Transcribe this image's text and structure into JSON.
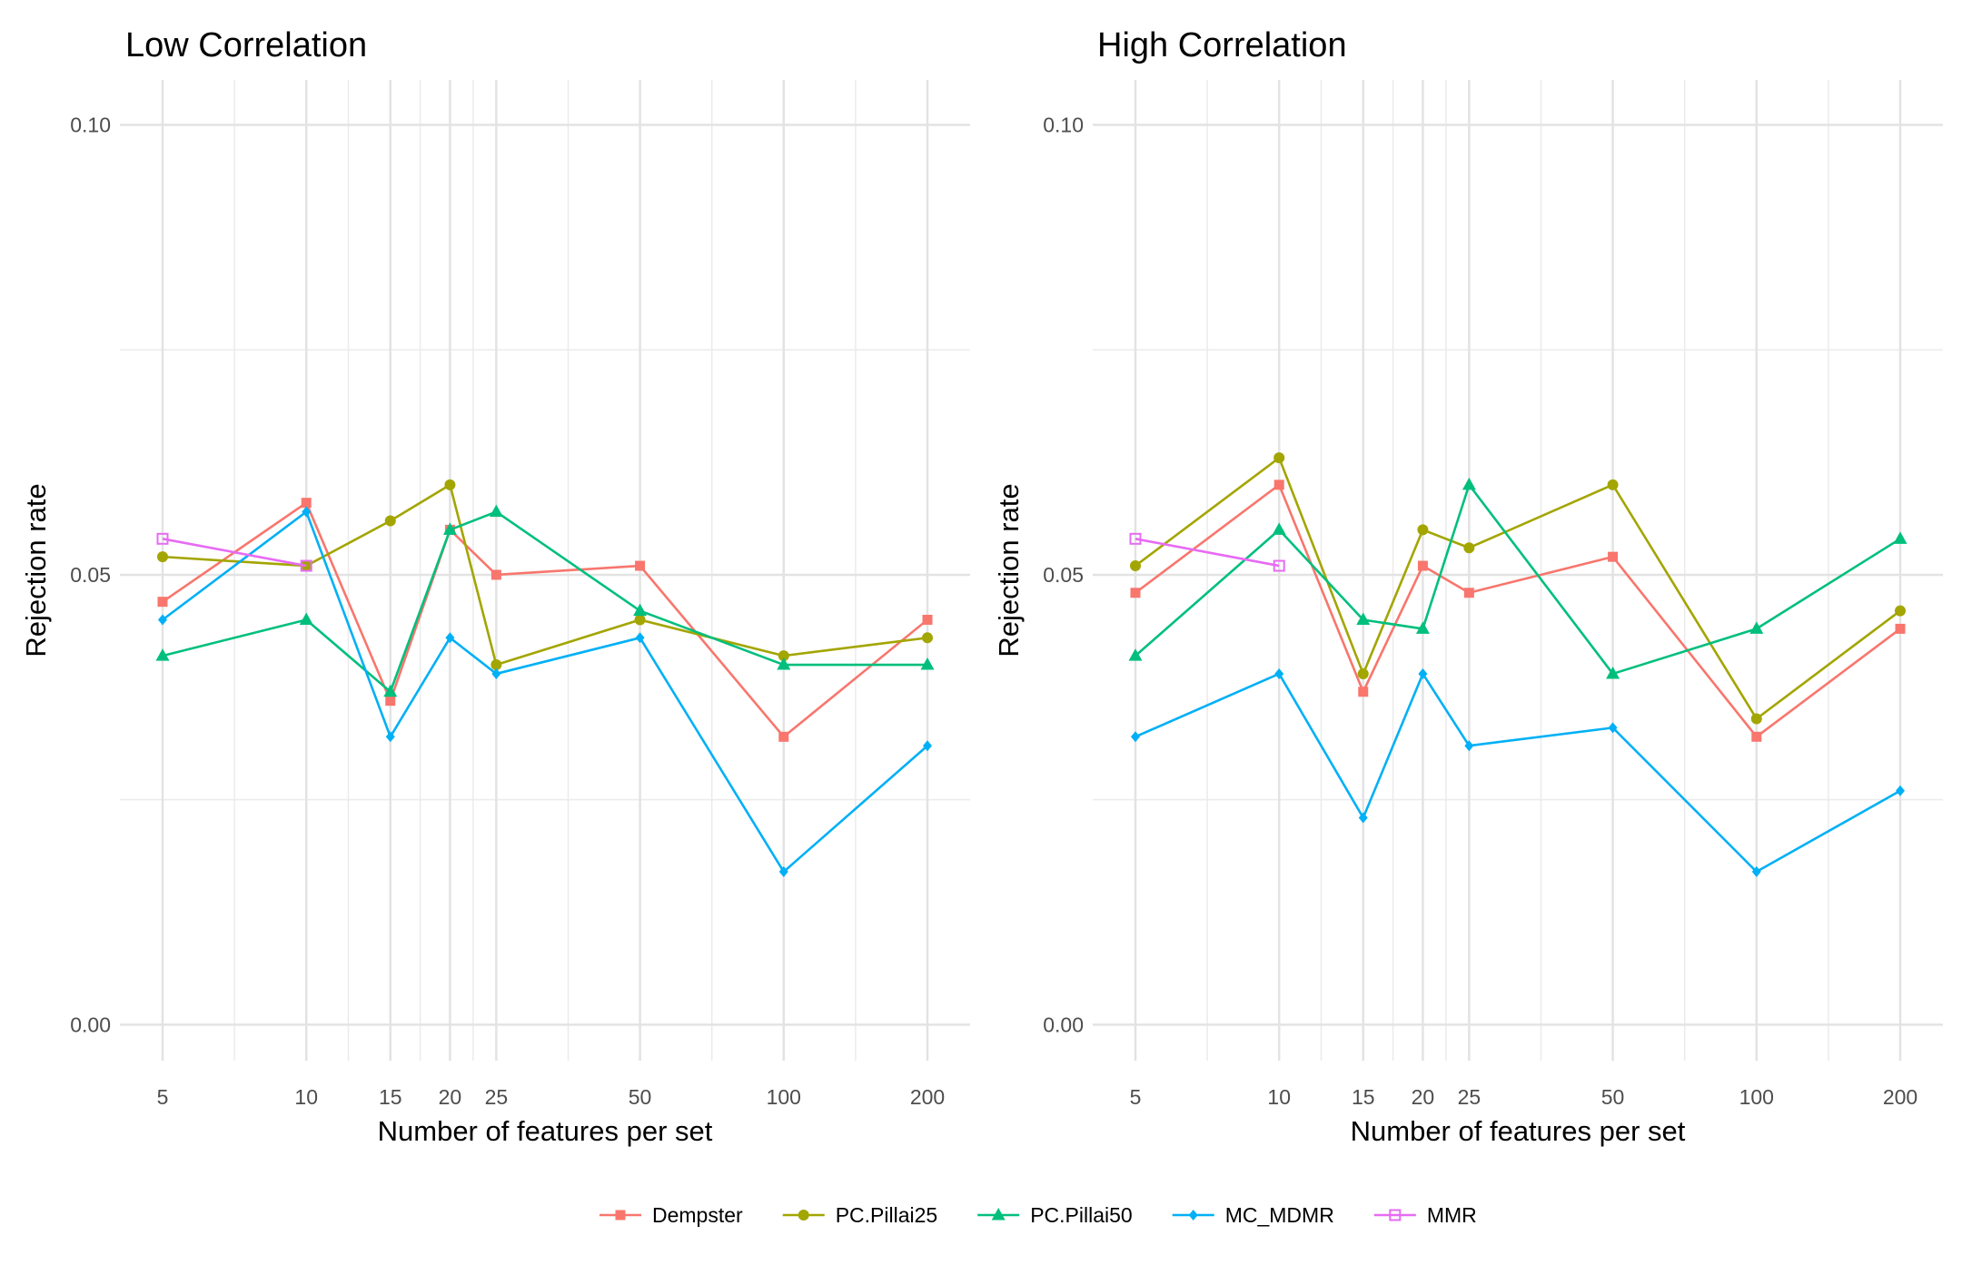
{
  "chart_data": [
    {
      "type": "line",
      "title": "Low Correlation",
      "xlabel": "Number of features per set",
      "ylabel": "Rejection rate",
      "x_scale": "log",
      "x": [
        5,
        10,
        15,
        20,
        25,
        50,
        100,
        200
      ],
      "x_tick_labels": [
        "5",
        "10",
        "15",
        "20",
        "25",
        "50",
        "100",
        "200"
      ],
      "y_tick_labels": [
        "0.00",
        "0.05",
        "0.10"
      ],
      "ylim": [
        -0.004,
        0.105
      ],
      "grid": true,
      "series": [
        {
          "name": "Dempster",
          "x": [
            5,
            10,
            15,
            20,
            25,
            50,
            100,
            200
          ],
          "values": [
            0.047,
            0.058,
            0.036,
            0.055,
            0.05,
            0.051,
            0.032,
            0.045
          ]
        },
        {
          "name": "PC.Pillai25",
          "x": [
            5,
            10,
            15,
            20,
            25,
            50,
            100,
            200
          ],
          "values": [
            0.052,
            0.051,
            0.056,
            0.06,
            0.04,
            0.045,
            0.041,
            0.043
          ]
        },
        {
          "name": "PC.Pillai50",
          "x": [
            5,
            10,
            15,
            20,
            25,
            50,
            100,
            200
          ],
          "values": [
            0.041,
            0.045,
            0.037,
            0.055,
            0.057,
            0.046,
            0.04,
            0.04
          ]
        },
        {
          "name": "MC_MDMR",
          "x": [
            5,
            10,
            15,
            20,
            25,
            50,
            100,
            200
          ],
          "values": [
            0.045,
            0.057,
            0.032,
            0.043,
            0.039,
            0.043,
            0.017,
            0.031
          ]
        },
        {
          "name": "MMR",
          "x": [
            5,
            10
          ],
          "values": [
            0.054,
            0.051
          ]
        }
      ]
    },
    {
      "type": "line",
      "title": "High Correlation",
      "xlabel": "Number of features per set",
      "ylabel": "Rejection rate",
      "x_scale": "log",
      "x": [
        5,
        10,
        15,
        20,
        25,
        50,
        100,
        200
      ],
      "x_tick_labels": [
        "5",
        "10",
        "15",
        "20",
        "25",
        "50",
        "100",
        "200"
      ],
      "y_tick_labels": [
        "0.00",
        "0.05",
        "0.10"
      ],
      "ylim": [
        -0.004,
        0.105
      ],
      "grid": true,
      "series": [
        {
          "name": "Dempster",
          "x": [
            5,
            10,
            15,
            20,
            25,
            50,
            100,
            200
          ],
          "values": [
            0.048,
            0.06,
            0.037,
            0.051,
            0.048,
            0.052,
            0.032,
            0.044
          ]
        },
        {
          "name": "PC.Pillai25",
          "x": [
            5,
            10,
            15,
            20,
            25,
            50,
            100,
            200
          ],
          "values": [
            0.051,
            0.063,
            0.039,
            0.055,
            0.053,
            0.06,
            0.034,
            0.046
          ]
        },
        {
          "name": "PC.Pillai50",
          "x": [
            5,
            10,
            15,
            20,
            25,
            50,
            100,
            200
          ],
          "values": [
            0.041,
            0.055,
            0.045,
            0.044,
            0.06,
            0.039,
            0.044,
            0.054
          ]
        },
        {
          "name": "MC_MDMR",
          "x": [
            5,
            10,
            15,
            20,
            25,
            50,
            100,
            200
          ],
          "values": [
            0.032,
            0.039,
            0.023,
            0.039,
            0.031,
            0.033,
            0.017,
            0.026
          ]
        },
        {
          "name": "MMR",
          "x": [
            5,
            10
          ],
          "values": [
            0.054,
            0.051
          ]
        }
      ]
    }
  ],
  "legend": {
    "position": "bottom",
    "items": [
      {
        "name": "Dempster",
        "color": "#F8766D",
        "shape": "square"
      },
      {
        "name": "PC.Pillai25",
        "color": "#A3A500",
        "shape": "circle"
      },
      {
        "name": "PC.Pillai50",
        "color": "#00BF7D",
        "shape": "triangle"
      },
      {
        "name": "MC_MDMR",
        "color": "#00B0F6",
        "shape": "diamond"
      },
      {
        "name": "MMR",
        "color": "#E76BF3",
        "shape": "open-square"
      }
    ]
  }
}
